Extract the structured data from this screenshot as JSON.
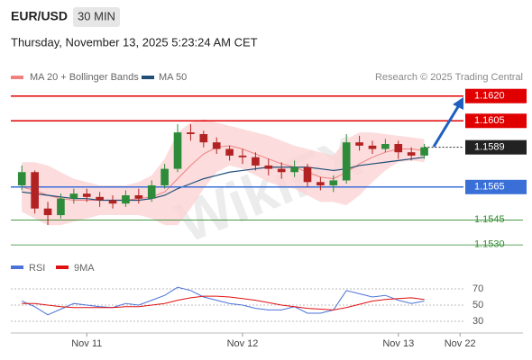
{
  "chart_data": {
    "type": "candlestick",
    "title": "EUR/USD",
    "timeframe": "30 MIN",
    "subtitle": "Thursday, November 13, 2025 5:23:24 AM CET",
    "source": "Research © 2025 Trading Central",
    "watermark": "WikiFX",
    "x": [
      -10,
      -8,
      -6,
      -4,
      -2,
      0,
      2,
      4,
      6,
      8,
      10,
      12,
      14,
      16,
      18,
      20,
      22,
      24,
      26,
      28,
      30,
      32,
      34,
      36,
      38,
      40,
      42,
      44,
      46,
      48,
      50,
      52
    ],
    "open": [
      1.1566,
      1.1574,
      1.1552,
      1.1548,
      1.1558,
      1.1561,
      1.1559,
      1.1557,
      1.1555,
      1.156,
      1.1558,
      1.1566,
      1.1576,
      1.1598,
      1.1597,
      1.1592,
      1.1588,
      1.1584,
      1.1583,
      1.1578,
      1.1576,
      1.1574,
      1.1577,
      1.1568,
      1.1566,
      1.1569,
      1.1592,
      1.159,
      1.1588,
      1.1591,
      1.1586,
      1.1584
    ],
    "high": [
      1.1578,
      1.1575,
      1.1556,
      1.1561,
      1.1564,
      1.1564,
      1.1562,
      1.156,
      1.1563,
      1.1564,
      1.1569,
      1.1579,
      1.1603,
      1.1603,
      1.1599,
      1.1595,
      1.159,
      1.1588,
      1.1586,
      1.1582,
      1.158,
      1.1581,
      1.1579,
      1.1571,
      1.1572,
      1.1597,
      1.1596,
      1.1593,
      1.1594,
      1.1593,
      1.1589,
      1.1591
    ],
    "low": [
      1.1563,
      1.1549,
      1.1542,
      1.1546,
      1.1555,
      1.1556,
      1.1553,
      1.1552,
      1.1553,
      1.1555,
      1.1556,
      1.1564,
      1.1574,
      1.1593,
      1.1589,
      1.1585,
      1.1581,
      1.1579,
      1.1575,
      1.1572,
      1.157,
      1.1571,
      1.1565,
      1.1563,
      1.1562,
      1.1567,
      1.1587,
      1.1585,
      1.1586,
      1.1582,
      1.1581,
      1.1582
    ],
    "close": [
      1.1574,
      1.1552,
      1.1548,
      1.1558,
      1.1561,
      1.1559,
      1.1557,
      1.1555,
      1.156,
      1.1558,
      1.1566,
      1.1576,
      1.1598,
      1.1597,
      1.1592,
      1.1588,
      1.1584,
      1.1583,
      1.1578,
      1.1576,
      1.1574,
      1.1577,
      1.1568,
      1.1566,
      1.1569,
      1.1592,
      1.159,
      1.1588,
      1.1591,
      1.1586,
      1.1584,
      1.1589
    ],
    "up_color": "#2e8b3a",
    "down_color": "#b22222",
    "overlays": [
      {
        "name": "MA 20 + Bollinger Bands",
        "color": "#f08080",
        "band_color": "#fbd3d3",
        "values": [
          1.1565,
          1.1563,
          1.156,
          1.1558,
          1.1557,
          1.1557,
          1.1557,
          1.1557,
          1.1557,
          1.1558,
          1.1559,
          1.1562,
          1.157,
          1.1578,
          1.1585,
          1.1589,
          1.159,
          1.1588,
          1.1585,
          1.1582,
          1.1579,
          1.1577,
          1.1574,
          1.1571,
          1.157,
          1.1574,
          1.1579,
          1.1583,
          1.1586,
          1.1588,
          1.1588,
          1.1587
        ],
        "upper": [
          1.158,
          1.158,
          1.1578,
          1.1574,
          1.157,
          1.1568,
          1.1566,
          1.1566,
          1.1566,
          1.1568,
          1.1572,
          1.1582,
          1.1598,
          1.1604,
          1.1606,
          1.1604,
          1.1602,
          1.16,
          1.1598,
          1.1596,
          1.1593,
          1.159,
          1.1588,
          1.1586,
          1.1584,
          1.1594,
          1.1598,
          1.1598,
          1.1597,
          1.1596,
          1.1595,
          1.1594
        ],
        "lower": [
          1.155,
          1.1546,
          1.1542,
          1.1542,
          1.1544,
          1.1546,
          1.1548,
          1.1548,
          1.1548,
          1.1548,
          1.1546,
          1.1542,
          1.1542,
          1.1552,
          1.1564,
          1.1574,
          1.1578,
          1.1576,
          1.1572,
          1.1568,
          1.1565,
          1.1564,
          1.156,
          1.1556,
          1.1556,
          1.1554,
          1.156,
          1.1568,
          1.1575,
          1.158,
          1.1581,
          1.158
        ]
      },
      {
        "name": "MA 50",
        "color": "#1f4e79",
        "values": [
          1.1562,
          1.1561,
          1.156,
          1.1559,
          1.1558,
          1.1558,
          1.1557,
          1.1557,
          1.1557,
          1.1557,
          1.1558,
          1.156,
          1.1564,
          1.1567,
          1.157,
          1.1572,
          1.1574,
          1.1575,
          1.1576,
          1.1577,
          1.1577,
          1.1577,
          1.1577,
          1.1576,
          1.1575,
          1.1576,
          1.1578,
          1.1579,
          1.158,
          1.1581,
          1.1582,
          1.1583
        ]
      }
    ],
    "levels": [
      {
        "value": 1.162,
        "label": "1.1620",
        "color": "#e00000",
        "style": "box"
      },
      {
        "value": 1.1605,
        "color": "#e00000",
        "style": "box"
      },
      {
        "value": 1.1589,
        "color": "#222222",
        "style": "current"
      },
      {
        "value": 1.1565,
        "color": "#3a6fd8",
        "style": "box"
      },
      {
        "value": 1.1545,
        "color": "#2e8b2e",
        "style": "text"
      },
      {
        "value": 1.153,
        "label": "1.1530",
        "color": "#2e8b2e",
        "style": "text"
      }
    ],
    "ylim": [
      1.1523,
      1.1628
    ],
    "xlim": [
      -11.7,
      67.2
    ],
    "xticks": [
      {
        "value": 0,
        "label": "Nov 11"
      },
      {
        "value": 24,
        "label": "Nov 12"
      },
      {
        "value": 48,
        "label": "Nov 13"
      },
      {
        "value": 57.5,
        "label": "Nov 22"
      }
    ],
    "rsi": {
      "series": [
        {
          "name": "RSI",
          "color": "#4a72d8",
          "values": [
            55,
            48,
            38,
            45,
            52,
            50,
            48,
            47,
            52,
            50,
            56,
            62,
            72,
            68,
            60,
            56,
            52,
            50,
            46,
            44,
            44,
            48,
            40,
            40,
            44,
            68,
            64,
            60,
            62,
            56,
            52,
            55
          ]
        },
        {
          "name": "9MA",
          "color": "#e01010",
          "values": [
            52,
            52,
            50,
            48,
            47,
            47,
            47,
            47,
            48,
            48,
            50,
            52,
            56,
            59,
            61,
            61,
            60,
            58,
            56,
            53,
            50,
            48,
            46,
            45,
            44,
            47,
            51,
            55,
            57,
            58,
            59,
            57
          ]
        }
      ],
      "ylim": [
        20,
        80
      ],
      "yticks": [
        30,
        50,
        70
      ]
    }
  }
}
